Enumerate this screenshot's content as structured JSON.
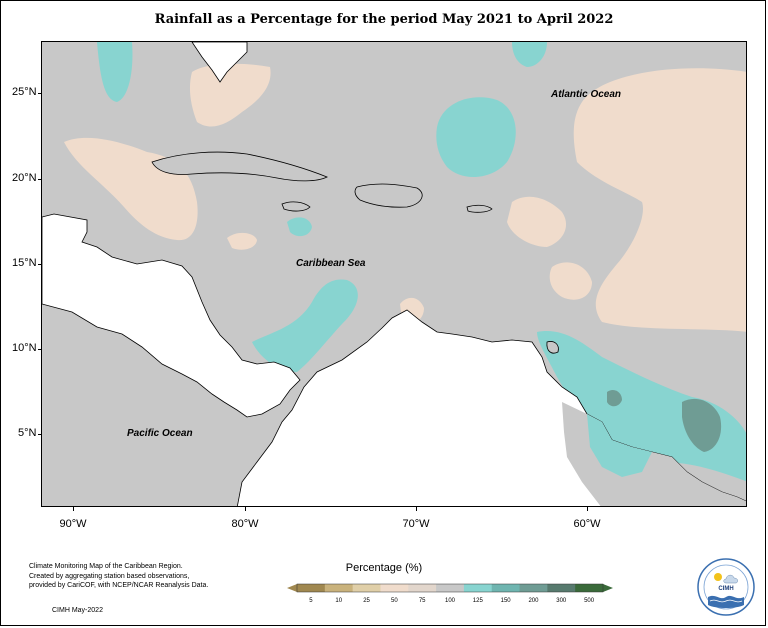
{
  "title": "Rainfall as a Percentage for the period May 2021 to April 2022",
  "map": {
    "labels": {
      "atlantic": "Atlantic Ocean",
      "caribbean": "Caribbean Sea",
      "pacific": "Pacific Ocean"
    },
    "lat_ticks": [
      "25°N",
      "20°N",
      "15°N",
      "10°N",
      "5°N"
    ],
    "lon_ticks": [
      "90°W",
      "80°W",
      "70°W",
      "60°W"
    ]
  },
  "notes": {
    "line1": "Climate Monitoring Map of the Caribbean Region.",
    "line2": "Created by aggregating station based observations,",
    "line3": "provided by CariCOF, with NCEP/NCAR Reanalysis Data.",
    "credit": "CIMH May-2022"
  },
  "legend": {
    "title": "Percentage (%)",
    "ticks": [
      "5",
      "10",
      "25",
      "50",
      "75",
      "100",
      "125",
      "150",
      "200",
      "300",
      "500"
    ],
    "colors": [
      "#a08850",
      "#c9b27c",
      "#e0cfa8",
      "#f0dccc",
      "#e2d6cc",
      "#c8c8c8",
      "#88d4d0",
      "#6fb5b0",
      "#6f9c94",
      "#577a6e",
      "#3a6a3a"
    ]
  },
  "logo": {
    "text": "CIMH"
  },
  "colors": {
    "ocean_normal": "#c8c8c8",
    "dry": "#f0dccc",
    "wet": "#88d4d0",
    "very_wet": "#6f9c94",
    "land_nodata": "#ffffff"
  }
}
